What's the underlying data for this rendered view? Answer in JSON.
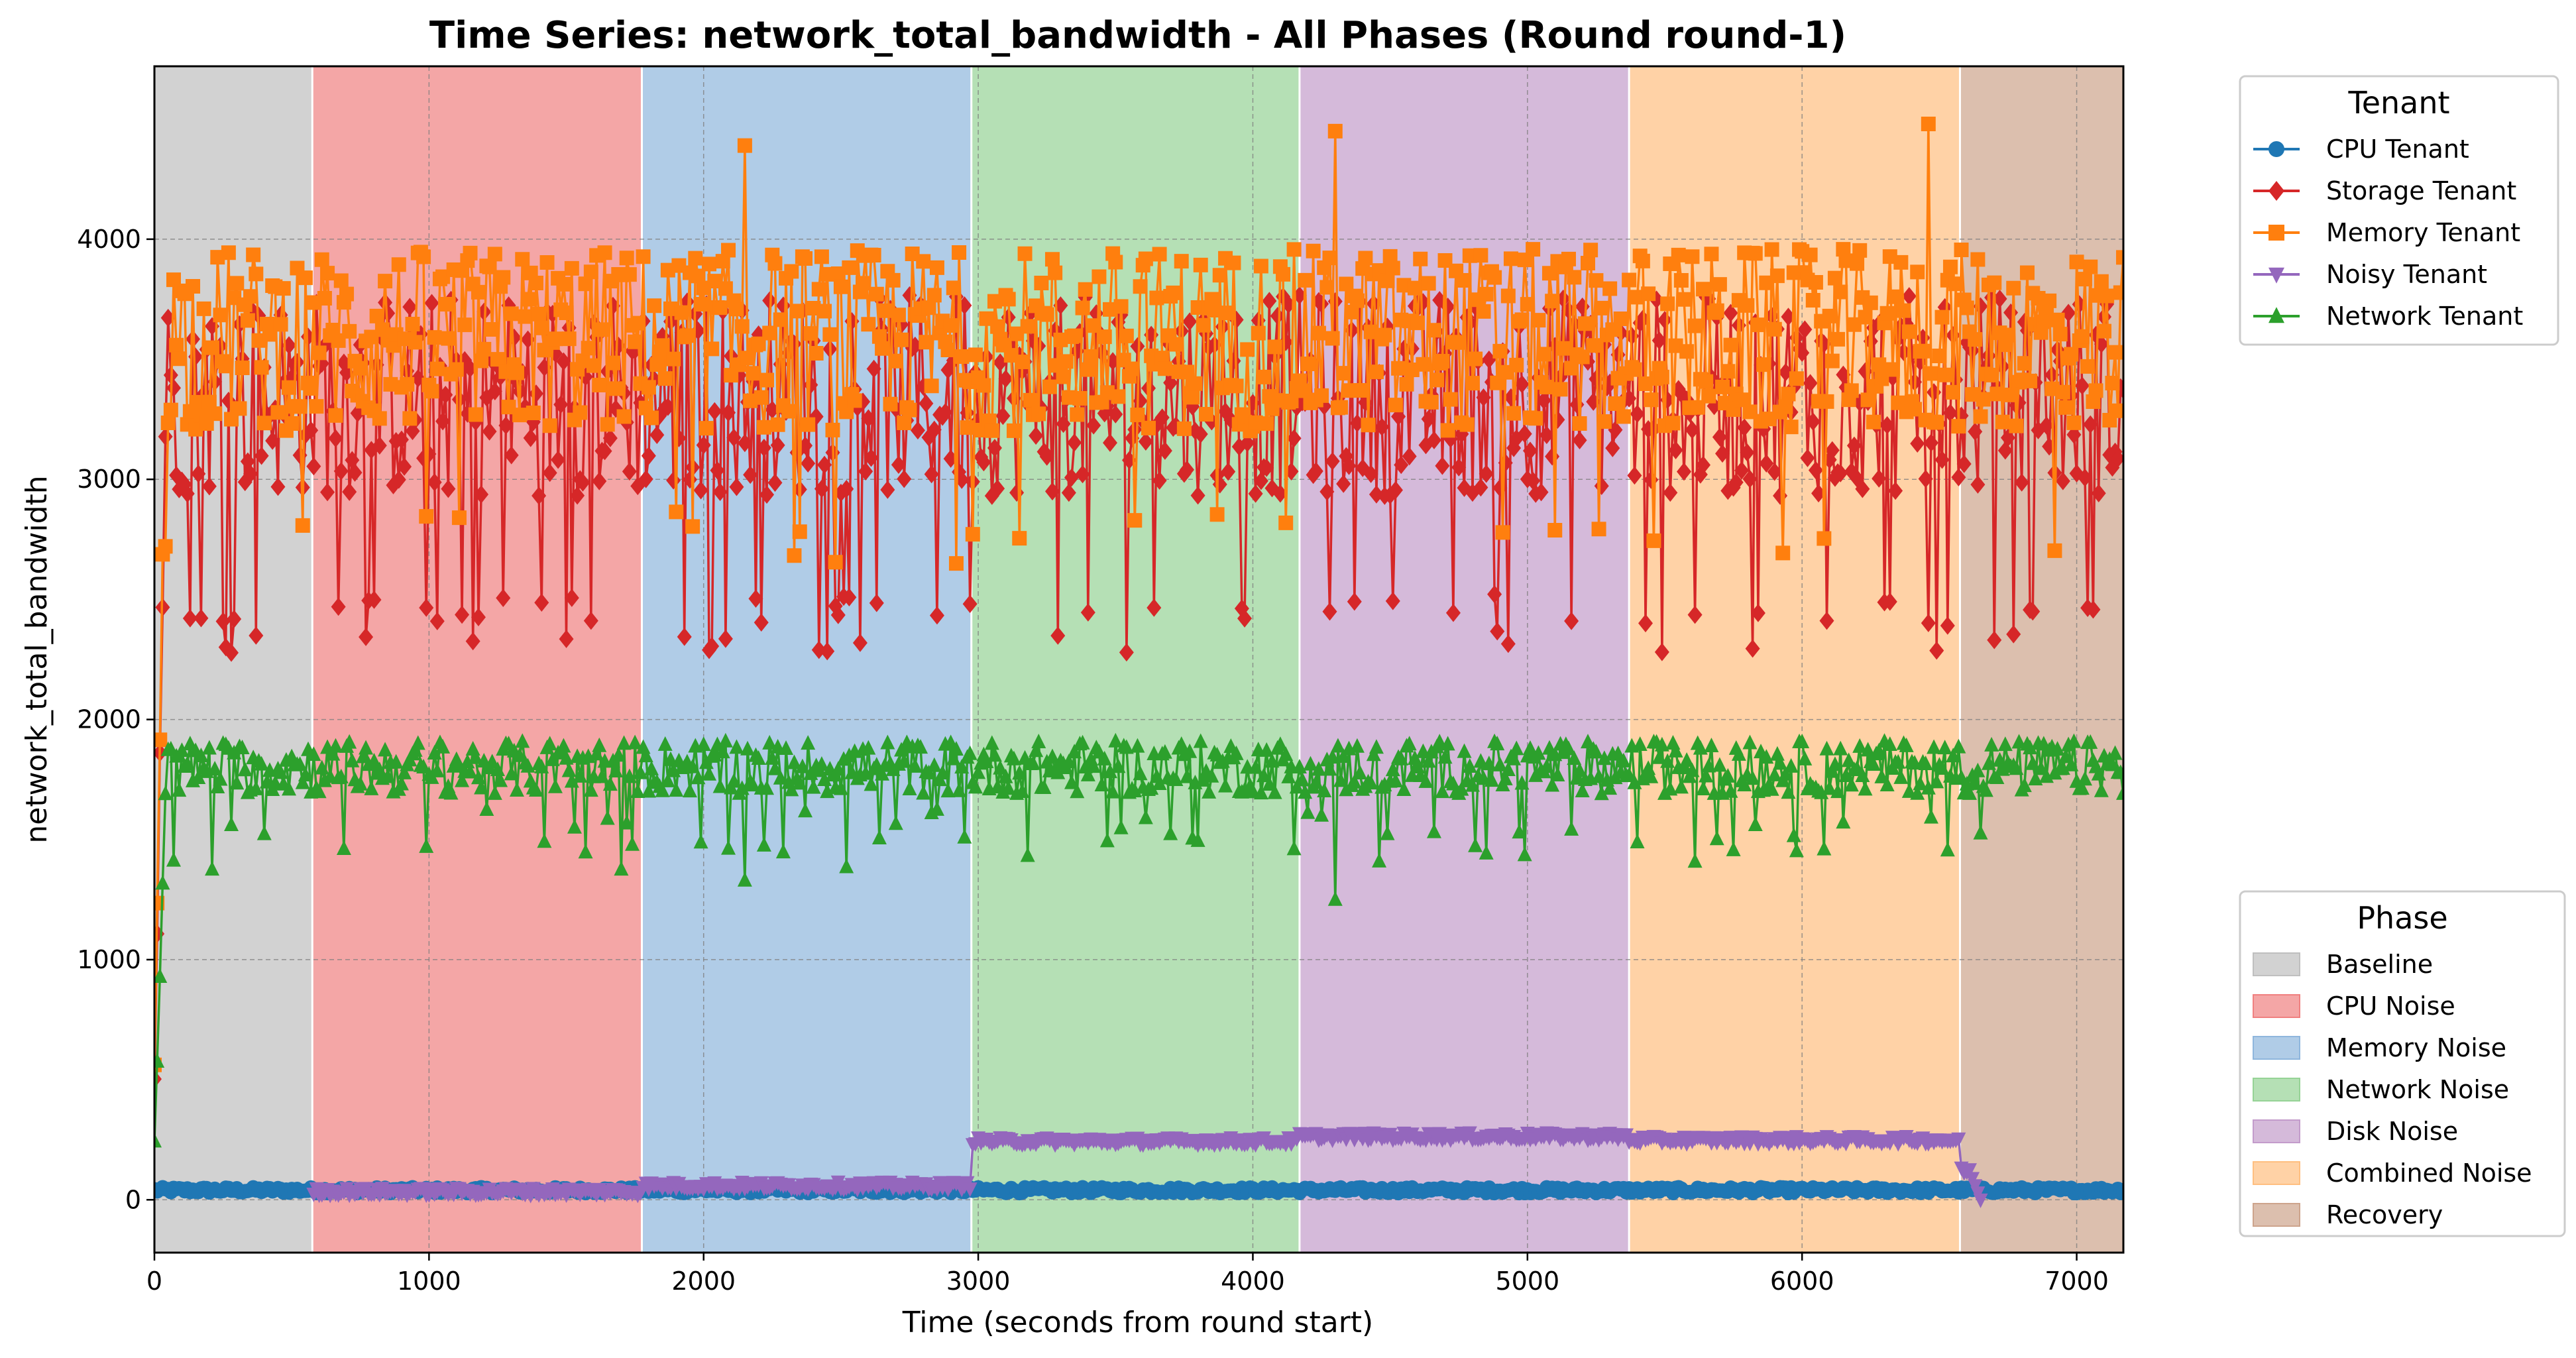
{
  "chart_data": {
    "type": "line",
    "title": "Time Series: network_total_bandwidth - All Phases (Round round-1)",
    "xlabel": "Time (seconds from round start)",
    "ylabel": "network_total_bandwidth",
    "xlim": [
      0,
      7170
    ],
    "ylim": [
      -220,
      4720
    ],
    "xticks": [
      0,
      1000,
      2000,
      3000,
      4000,
      5000,
      6000,
      7000
    ],
    "yticks": [
      0,
      1000,
      2000,
      3000,
      4000
    ],
    "grid": true,
    "sample_interval": 10,
    "series_legend_title": "Tenant",
    "phase_legend_title": "Phase",
    "series_legend_placement": "upper-right-outside",
    "phase_legend_placement": "lower-right-outside",
    "phases": [
      {
        "name": "Baseline",
        "start": 0,
        "end": 575,
        "color": "#bfbfbf"
      },
      {
        "name": "CPU Noise",
        "start": 575,
        "end": 1775,
        "color": "#f08080"
      },
      {
        "name": "Memory Noise",
        "start": 1775,
        "end": 2975,
        "color": "#8fb6dd"
      },
      {
        "name": "Network Noise",
        "start": 2975,
        "end": 4170,
        "color": "#96d396"
      },
      {
        "name": "Disk Noise",
        "start": 4170,
        "end": 5370,
        "color": "#c39ccb"
      },
      {
        "name": "Combined Noise",
        "start": 5370,
        "end": 6575,
        "color": "#ffbf80"
      },
      {
        "name": "Recovery",
        "start": 6575,
        "end": 7170,
        "color": "#cda48c"
      }
    ],
    "series": [
      {
        "name": "CPU Tenant",
        "color": "#1f77b4",
        "marker": "circle",
        "baseline": 40,
        "jitter": 12,
        "low_value": 40,
        "low_prob": 0,
        "start_ramp": false,
        "x_range": [
          0,
          7170
        ],
        "spike_values": []
      },
      {
        "name": "Storage Tenant",
        "color": "#d62728",
        "marker": "diamond",
        "baseline": 3350,
        "jitter": 420,
        "low_value": 2400,
        "low_prob": 0.1,
        "start_ramp": true,
        "x_range": [
          0,
          7170
        ],
        "spike_values": []
      },
      {
        "name": "Memory Tenant",
        "color": "#ff7f0e",
        "marker": "square",
        "baseline": 3580,
        "jitter": 380,
        "low_value": 2750,
        "low_prob": 0.05,
        "start_ramp": true,
        "x_range": [
          0,
          7170
        ],
        "spike_values": [
          4390,
          4450,
          4480
        ]
      },
      {
        "name": "Noisy Tenant",
        "color": "#9467bd",
        "marker": "triangle-down",
        "baseline": 0,
        "jitter": 15,
        "low_value": 0,
        "low_prob": 0,
        "start_ramp": false,
        "x_range": [
          580,
          6650
        ],
        "levels": [
          {
            "start": 580,
            "end": 1775,
            "value": 35
          },
          {
            "start": 1775,
            "end": 2975,
            "value": 60
          },
          {
            "start": 2975,
            "end": 4170,
            "value": 245
          },
          {
            "start": 4170,
            "end": 5370,
            "value": 265
          },
          {
            "start": 5370,
            "end": 6575,
            "value": 250
          },
          {
            "start": 6575,
            "end": 6650,
            "value": 120
          }
        ],
        "spike_values": []
      },
      {
        "name": "Network Tenant",
        "color": "#2ca02c",
        "marker": "triangle-up",
        "baseline": 1800,
        "jitter": 110,
        "low_value": 1500,
        "low_prob": 0.07,
        "start_ramp": true,
        "x_range": [
          0,
          7170
        ],
        "spike_values": [
          1330,
          1250
        ]
      }
    ]
  }
}
